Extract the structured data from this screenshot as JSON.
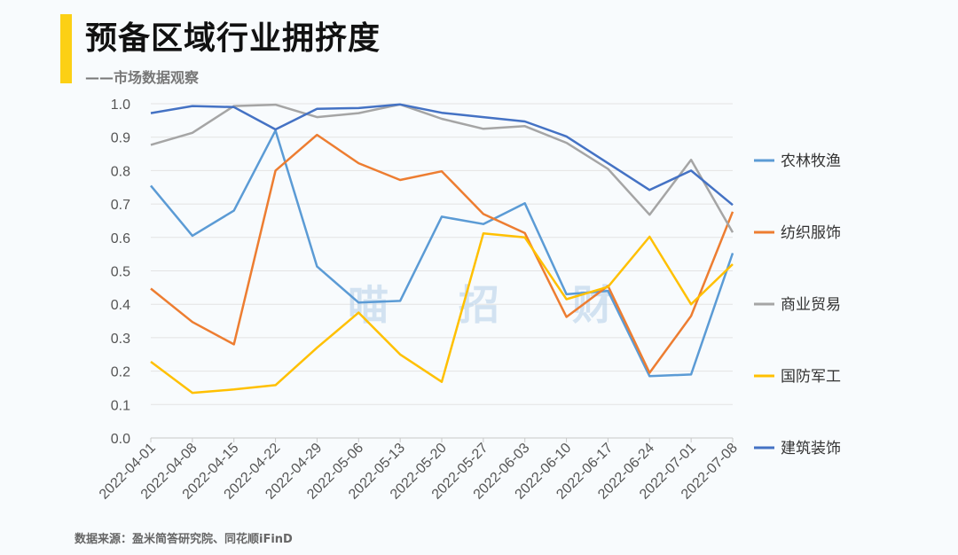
{
  "header": {
    "title": "预备区域行业拥挤度",
    "subtitle": "——市场数据观察"
  },
  "footer": {
    "source": "数据来源：盈米简答研究院、同花顺iFinD"
  },
  "watermark": [
    "喵",
    "招",
    "财"
  ],
  "chart_data": {
    "type": "line",
    "title": "",
    "xlabel": "",
    "ylabel": "",
    "ylim": [
      0,
      1.0
    ],
    "yticks": [
      "0.0",
      "0.1",
      "0.2",
      "0.3",
      "0.4",
      "0.5",
      "0.6",
      "0.7",
      "0.8",
      "0.9",
      "1.0"
    ],
    "grid": true,
    "legend_position": "right",
    "categories": [
      "2022-04-01",
      "2022-04-08",
      "2022-04-15",
      "2022-04-22",
      "2022-04-29",
      "2022-05-06",
      "2022-05-13",
      "2022-05-20",
      "2022-05-27",
      "2022-06-03",
      "2022-06-10",
      "2022-06-17",
      "2022-06-24",
      "2022-07-01",
      "2022-07-08"
    ],
    "series": [
      {
        "name": "农林牧渔",
        "color": "#5b9bd5",
        "values": [
          0.755,
          0.605,
          0.68,
          0.92,
          0.513,
          0.405,
          0.41,
          0.662,
          0.64,
          0.702,
          0.43,
          0.44,
          0.185,
          0.19,
          0.553
        ]
      },
      {
        "name": "纺织服饰",
        "color": "#ed7d31",
        "values": [
          0.447,
          0.347,
          0.28,
          0.8,
          0.907,
          0.822,
          0.772,
          0.798,
          0.67,
          0.613,
          0.362,
          0.455,
          0.195,
          0.365,
          0.677
        ]
      },
      {
        "name": "商业贸易",
        "color": "#a5a5a5",
        "values": [
          0.877,
          0.913,
          0.993,
          0.997,
          0.96,
          0.972,
          0.998,
          0.955,
          0.925,
          0.933,
          0.883,
          0.805,
          0.668,
          0.832,
          0.615
        ]
      },
      {
        "name": "国防军工",
        "color": "#ffc000",
        "values": [
          0.228,
          0.135,
          0.145,
          0.158,
          0.27,
          0.375,
          0.25,
          0.168,
          0.612,
          0.6,
          0.415,
          0.452,
          0.602,
          0.4,
          0.52
        ]
      },
      {
        "name": "建筑装饰",
        "color": "#4472c4",
        "values": [
          0.972,
          0.993,
          0.99,
          0.923,
          0.985,
          0.987,
          0.998,
          0.973,
          0.96,
          0.947,
          0.902,
          0.822,
          0.742,
          0.8,
          0.697
        ]
      }
    ]
  }
}
